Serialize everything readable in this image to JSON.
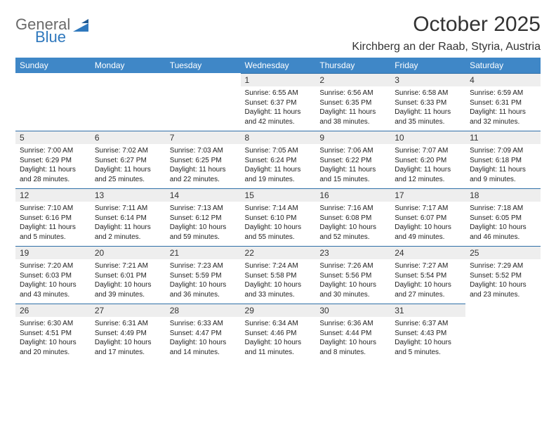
{
  "logo": {
    "general": "General",
    "blue": "Blue"
  },
  "title": "October 2025",
  "location": "Kirchberg an der Raab, Styria, Austria",
  "colors": {
    "header_bg": "#3f87c7",
    "header_text": "#ffffff",
    "daynum_bg": "#eeeeee",
    "row_border": "#2f6fa8",
    "logo_general": "#6a6a6a",
    "logo_blue": "#2f78bd"
  },
  "weekdays": [
    "Sunday",
    "Monday",
    "Tuesday",
    "Wednesday",
    "Thursday",
    "Friday",
    "Saturday"
  ],
  "weeks": [
    [
      null,
      null,
      null,
      {
        "day": "1",
        "sunrise": "Sunrise: 6:55 AM",
        "sunset": "Sunset: 6:37 PM",
        "daylight1": "Daylight: 11 hours",
        "daylight2": "and 42 minutes."
      },
      {
        "day": "2",
        "sunrise": "Sunrise: 6:56 AM",
        "sunset": "Sunset: 6:35 PM",
        "daylight1": "Daylight: 11 hours",
        "daylight2": "and 38 minutes."
      },
      {
        "day": "3",
        "sunrise": "Sunrise: 6:58 AM",
        "sunset": "Sunset: 6:33 PM",
        "daylight1": "Daylight: 11 hours",
        "daylight2": "and 35 minutes."
      },
      {
        "day": "4",
        "sunrise": "Sunrise: 6:59 AM",
        "sunset": "Sunset: 6:31 PM",
        "daylight1": "Daylight: 11 hours",
        "daylight2": "and 32 minutes."
      }
    ],
    [
      {
        "day": "5",
        "sunrise": "Sunrise: 7:00 AM",
        "sunset": "Sunset: 6:29 PM",
        "daylight1": "Daylight: 11 hours",
        "daylight2": "and 28 minutes."
      },
      {
        "day": "6",
        "sunrise": "Sunrise: 7:02 AM",
        "sunset": "Sunset: 6:27 PM",
        "daylight1": "Daylight: 11 hours",
        "daylight2": "and 25 minutes."
      },
      {
        "day": "7",
        "sunrise": "Sunrise: 7:03 AM",
        "sunset": "Sunset: 6:25 PM",
        "daylight1": "Daylight: 11 hours",
        "daylight2": "and 22 minutes."
      },
      {
        "day": "8",
        "sunrise": "Sunrise: 7:05 AM",
        "sunset": "Sunset: 6:24 PM",
        "daylight1": "Daylight: 11 hours",
        "daylight2": "and 19 minutes."
      },
      {
        "day": "9",
        "sunrise": "Sunrise: 7:06 AM",
        "sunset": "Sunset: 6:22 PM",
        "daylight1": "Daylight: 11 hours",
        "daylight2": "and 15 minutes."
      },
      {
        "day": "10",
        "sunrise": "Sunrise: 7:07 AM",
        "sunset": "Sunset: 6:20 PM",
        "daylight1": "Daylight: 11 hours",
        "daylight2": "and 12 minutes."
      },
      {
        "day": "11",
        "sunrise": "Sunrise: 7:09 AM",
        "sunset": "Sunset: 6:18 PM",
        "daylight1": "Daylight: 11 hours",
        "daylight2": "and 9 minutes."
      }
    ],
    [
      {
        "day": "12",
        "sunrise": "Sunrise: 7:10 AM",
        "sunset": "Sunset: 6:16 PM",
        "daylight1": "Daylight: 11 hours",
        "daylight2": "and 5 minutes."
      },
      {
        "day": "13",
        "sunrise": "Sunrise: 7:11 AM",
        "sunset": "Sunset: 6:14 PM",
        "daylight1": "Daylight: 11 hours",
        "daylight2": "and 2 minutes."
      },
      {
        "day": "14",
        "sunrise": "Sunrise: 7:13 AM",
        "sunset": "Sunset: 6:12 PM",
        "daylight1": "Daylight: 10 hours",
        "daylight2": "and 59 minutes."
      },
      {
        "day": "15",
        "sunrise": "Sunrise: 7:14 AM",
        "sunset": "Sunset: 6:10 PM",
        "daylight1": "Daylight: 10 hours",
        "daylight2": "and 55 minutes."
      },
      {
        "day": "16",
        "sunrise": "Sunrise: 7:16 AM",
        "sunset": "Sunset: 6:08 PM",
        "daylight1": "Daylight: 10 hours",
        "daylight2": "and 52 minutes."
      },
      {
        "day": "17",
        "sunrise": "Sunrise: 7:17 AM",
        "sunset": "Sunset: 6:07 PM",
        "daylight1": "Daylight: 10 hours",
        "daylight2": "and 49 minutes."
      },
      {
        "day": "18",
        "sunrise": "Sunrise: 7:18 AM",
        "sunset": "Sunset: 6:05 PM",
        "daylight1": "Daylight: 10 hours",
        "daylight2": "and 46 minutes."
      }
    ],
    [
      {
        "day": "19",
        "sunrise": "Sunrise: 7:20 AM",
        "sunset": "Sunset: 6:03 PM",
        "daylight1": "Daylight: 10 hours",
        "daylight2": "and 43 minutes."
      },
      {
        "day": "20",
        "sunrise": "Sunrise: 7:21 AM",
        "sunset": "Sunset: 6:01 PM",
        "daylight1": "Daylight: 10 hours",
        "daylight2": "and 39 minutes."
      },
      {
        "day": "21",
        "sunrise": "Sunrise: 7:23 AM",
        "sunset": "Sunset: 5:59 PM",
        "daylight1": "Daylight: 10 hours",
        "daylight2": "and 36 minutes."
      },
      {
        "day": "22",
        "sunrise": "Sunrise: 7:24 AM",
        "sunset": "Sunset: 5:58 PM",
        "daylight1": "Daylight: 10 hours",
        "daylight2": "and 33 minutes."
      },
      {
        "day": "23",
        "sunrise": "Sunrise: 7:26 AM",
        "sunset": "Sunset: 5:56 PM",
        "daylight1": "Daylight: 10 hours",
        "daylight2": "and 30 minutes."
      },
      {
        "day": "24",
        "sunrise": "Sunrise: 7:27 AM",
        "sunset": "Sunset: 5:54 PM",
        "daylight1": "Daylight: 10 hours",
        "daylight2": "and 27 minutes."
      },
      {
        "day": "25",
        "sunrise": "Sunrise: 7:29 AM",
        "sunset": "Sunset: 5:52 PM",
        "daylight1": "Daylight: 10 hours",
        "daylight2": "and 23 minutes."
      }
    ],
    [
      {
        "day": "26",
        "sunrise": "Sunrise: 6:30 AM",
        "sunset": "Sunset: 4:51 PM",
        "daylight1": "Daylight: 10 hours",
        "daylight2": "and 20 minutes."
      },
      {
        "day": "27",
        "sunrise": "Sunrise: 6:31 AM",
        "sunset": "Sunset: 4:49 PM",
        "daylight1": "Daylight: 10 hours",
        "daylight2": "and 17 minutes."
      },
      {
        "day": "28",
        "sunrise": "Sunrise: 6:33 AM",
        "sunset": "Sunset: 4:47 PM",
        "daylight1": "Daylight: 10 hours",
        "daylight2": "and 14 minutes."
      },
      {
        "day": "29",
        "sunrise": "Sunrise: 6:34 AM",
        "sunset": "Sunset: 4:46 PM",
        "daylight1": "Daylight: 10 hours",
        "daylight2": "and 11 minutes."
      },
      {
        "day": "30",
        "sunrise": "Sunrise: 6:36 AM",
        "sunset": "Sunset: 4:44 PM",
        "daylight1": "Daylight: 10 hours",
        "daylight2": "and 8 minutes."
      },
      {
        "day": "31",
        "sunrise": "Sunrise: 6:37 AM",
        "sunset": "Sunset: 4:43 PM",
        "daylight1": "Daylight: 10 hours",
        "daylight2": "and 5 minutes."
      },
      null
    ]
  ]
}
